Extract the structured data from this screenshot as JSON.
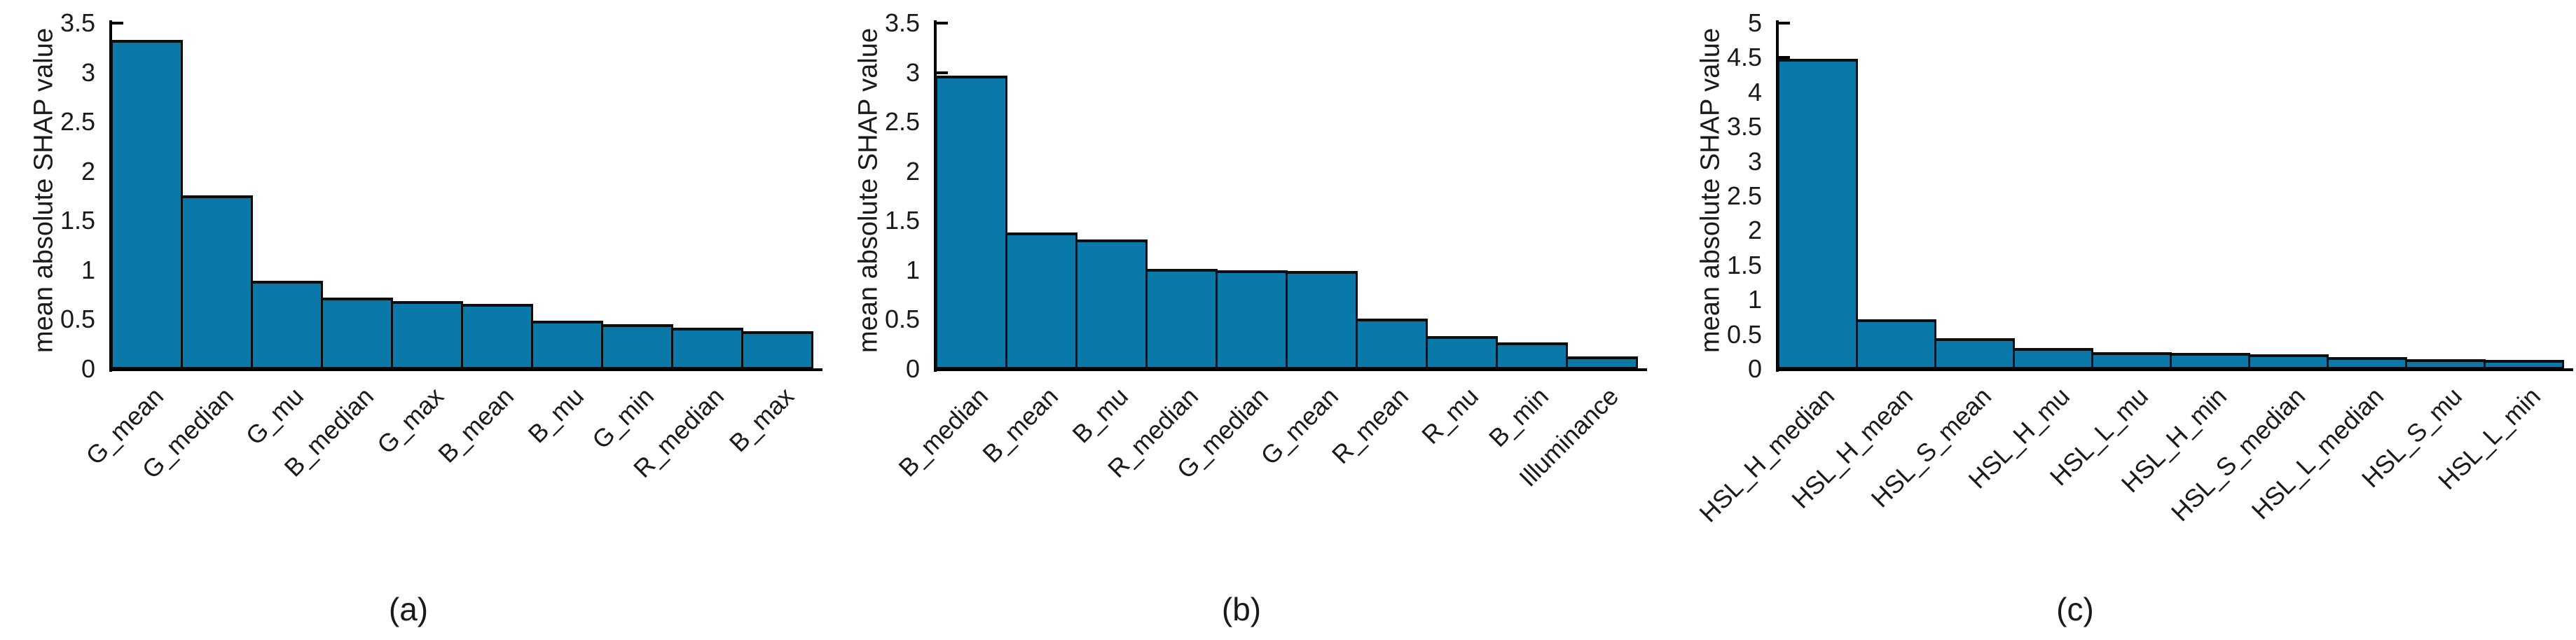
{
  "figure": {
    "background": "#ffffff",
    "text_color": "#1a1a1a",
    "captions": [
      "(a)",
      "(b)",
      "(c)"
    ]
  },
  "chart_data": [
    {
      "type": "bar",
      "panel": "(a)",
      "title": "",
      "xlabel": "",
      "ylabel": "mean absolute SHAP value",
      "ylim": [
        0,
        3.5
      ],
      "ytick_labels": [
        "0",
        "0.5",
        "1",
        "1.5",
        "2",
        "2.5",
        "3",
        "3.5"
      ],
      "grid": "off",
      "legend": "none",
      "bar_color": "#0a78a8",
      "bar_edge_color": "#0d0d0d",
      "categories": [
        "G_mean",
        "G_median",
        "G_mu",
        "B_median",
        "G_max",
        "B_mean",
        "B_mu",
        "G_min",
        "R_median",
        "B_max"
      ],
      "values": [
        3.33,
        1.76,
        0.89,
        0.72,
        0.69,
        0.66,
        0.49,
        0.45,
        0.42,
        0.38
      ]
    },
    {
      "type": "bar",
      "panel": "(b)",
      "title": "",
      "xlabel": "",
      "ylabel": "mean absolute SHAP value",
      "ylim": [
        0,
        3.5
      ],
      "ytick_labels": [
        "0",
        "0.5",
        "1",
        "1.5",
        "2",
        "2.5",
        "3",
        "3.5"
      ],
      "grid": "off",
      "legend": "none",
      "bar_color": "#0a78a8",
      "bar_edge_color": "#0d0d0d",
      "categories": [
        "B_median",
        "B_mean",
        "B_mu",
        "R_median",
        "G_median",
        "G_mean",
        "R_mean",
        "R_mu",
        "B_min",
        "Illuminance"
      ],
      "values": [
        2.97,
        1.38,
        1.31,
        1.01,
        1.0,
        0.99,
        0.51,
        0.33,
        0.27,
        0.13
      ]
    },
    {
      "type": "bar",
      "panel": "(c)",
      "title": "",
      "xlabel": "",
      "ylabel": "mean absolute SHAP value",
      "ylim": [
        0,
        5
      ],
      "ytick_labels": [
        "0",
        "0.5",
        "1",
        "1.5",
        "2",
        "2.5",
        "3",
        "3.5",
        "4",
        "4.5",
        "5"
      ],
      "grid": "off",
      "legend": "none",
      "bar_color": "#0a78a8",
      "bar_edge_color": "#0d0d0d",
      "categories": [
        "HSL_H_median",
        "HSL_H_mean",
        "HSL_S_mean",
        "HSL_H_mu",
        "HSL_L_mu",
        "HSL_H_min",
        "HSL_S_median",
        "HSL_L_median",
        "HSL_S_mu",
        "HSL_L_min"
      ],
      "values": [
        4.48,
        0.72,
        0.45,
        0.3,
        0.24,
        0.23,
        0.21,
        0.17,
        0.14,
        0.13
      ]
    }
  ]
}
